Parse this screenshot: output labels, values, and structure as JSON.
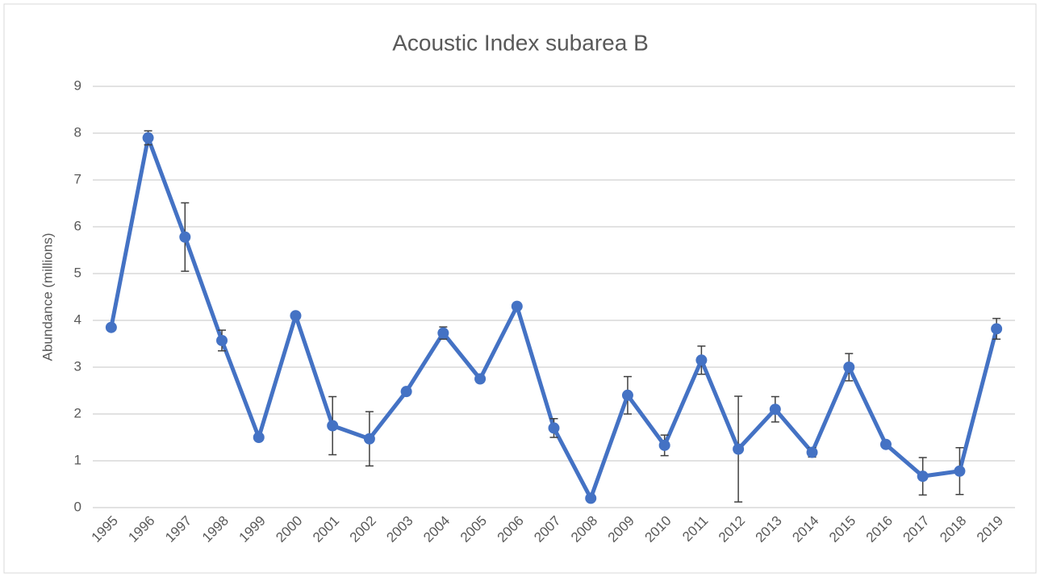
{
  "chart_data": {
    "type": "line",
    "title": "Acoustic Index subarea B",
    "y_label": "Abundance (millions)",
    "categories": [
      "1995",
      "1996",
      "1997",
      "1998",
      "1999",
      "2000",
      "2001",
      "2002",
      "2003",
      "2004",
      "2005",
      "2006",
      "2007",
      "2008",
      "2009",
      "2010",
      "2011",
      "2012",
      "2013",
      "2014",
      "2015",
      "2016",
      "2017",
      "2018",
      "2019"
    ],
    "series": [
      {
        "name": "Acoustic Index subarea B",
        "color": "#4472c4",
        "values": [
          3.85,
          7.9,
          5.78,
          3.57,
          1.5,
          4.1,
          1.75,
          1.47,
          2.48,
          3.73,
          2.75,
          4.3,
          1.7,
          0.2,
          2.4,
          1.33,
          3.15,
          1.25,
          2.1,
          1.18,
          3.0,
          1.35,
          0.67,
          0.78,
          3.82
        ],
        "errors": [
          null,
          0.15,
          0.73,
          0.22,
          null,
          null,
          0.62,
          0.58,
          null,
          0.13,
          null,
          null,
          0.2,
          null,
          0.4,
          0.22,
          0.3,
          1.13,
          0.27,
          0.1,
          0.29,
          null,
          0.4,
          0.5,
          0.22
        ]
      }
    ],
    "error_color": "#404040",
    "ylim": [
      0,
      9
    ],
    "yticks": [
      0,
      1,
      2,
      3,
      4,
      5,
      6,
      7,
      8,
      9
    ],
    "grid": true
  }
}
